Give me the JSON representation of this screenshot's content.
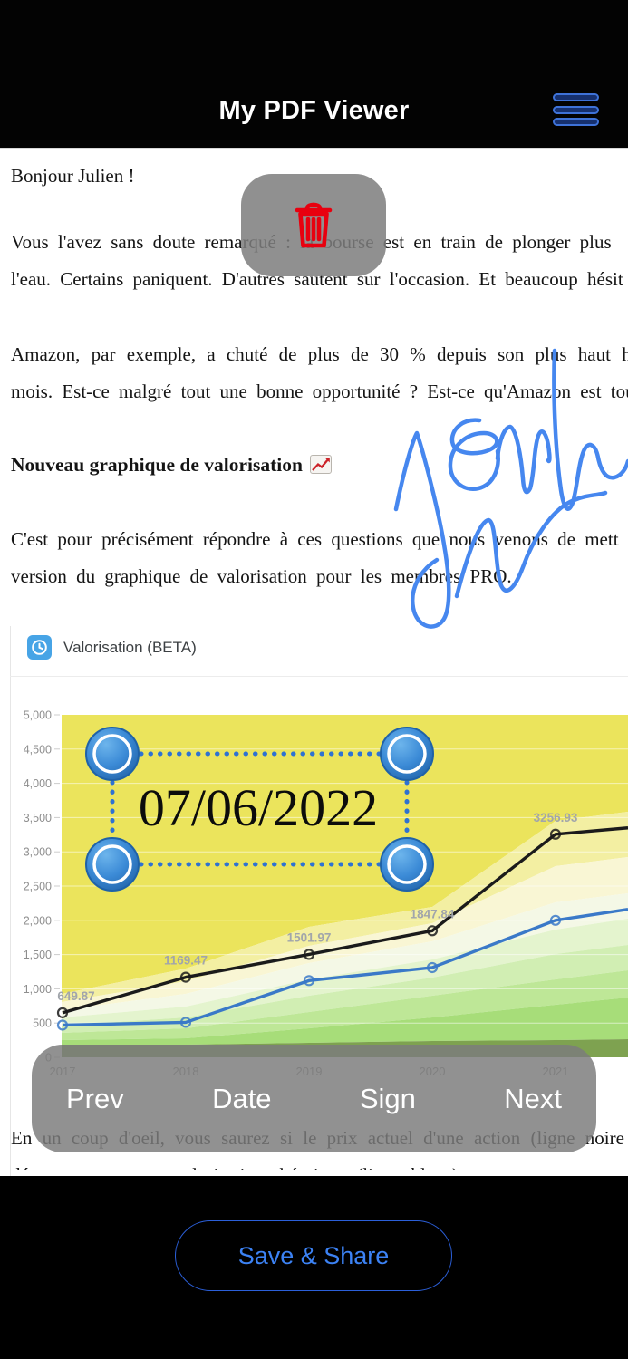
{
  "header": {
    "title": "My PDF Viewer",
    "menu_icon": "hamburger"
  },
  "document": {
    "greeting": "Bonjour Julien !",
    "para1": [
      "Vous l'avez sans doute remarqué : la bourse est en train de plonger plus",
      "l'eau. Certains paniquent. D'autres sautent sur l'occasion. Et beaucoup hésit"
    ],
    "para2": [
      "Amazon, par exemple, a chuté de plus de 30 % depuis son plus haut his",
      "mois. Est-ce malgré tout une bonne opportunité ? Est-ce qu'Amazon est tou"
    ],
    "heading": "Nouveau graphique de valorisation",
    "heading_emoji": "chart-increasing",
    "para3": [
      "C'est pour précisément répondre à ces questions que nous venons de mett",
      "version du graphique de valorisation pour les membres PRO."
    ],
    "para4": "En un coup d'oeil, vous saurez si le prix actuel d'une action (ligne noire",
    "para5_clipped": "dépasse ou non sa valorisation théorique (ligne bleue), et vous saurez"
  },
  "annotations": {
    "date_stamp": "07/06/2022",
    "signature_color": "#4687ef",
    "trash_color": "#e8000f",
    "handle_color": "#2f7fd0",
    "dotted_color": "#2e72d2"
  },
  "chart_card": {
    "title": "Valorisation (BETA)",
    "icon": "clock"
  },
  "chart_data": {
    "type": "line",
    "title": "Valorisation (BETA)",
    "x_categories": [
      "2017",
      "2018",
      "2019",
      "2020",
      "2021"
    ],
    "series": [
      {
        "name": "price-black",
        "color": "#1b1b1b",
        "values": [
          649.87,
          1169.47,
          1501.97,
          1847.84,
          3256.93
        ],
        "edge_value": 3350,
        "point_labels": [
          "649.87",
          "1169.47",
          "1501.97",
          "1847.84",
          "3256.93"
        ]
      },
      {
        "name": "valuation-blue",
        "color": "#3a79c8",
        "values": [
          470,
          510,
          1120,
          1310,
          2000
        ],
        "edge_value": 2160,
        "point_labels": []
      }
    ],
    "ylim": [
      0,
      5000
    ],
    "ytick_labels": [
      "0",
      "500",
      "1,000",
      "1,500",
      "2,000",
      "2,500",
      "3,000",
      "3,500",
      "4,000",
      "4,500",
      "5,000"
    ],
    "grid": true,
    "legend_position": "none",
    "zone_colors": [
      "#ebe45c",
      "#f3efa2",
      "#f9f6d4",
      "#f4f8e6",
      "#e4f4ce",
      "#d1eeb3",
      "#bee797",
      "#a7dd79",
      "#7ea250"
    ],
    "label_color": "#a1a5ab",
    "axis_label_color": "#8e8e8e"
  },
  "toolbar": {
    "buttons": [
      "Prev",
      "Date",
      "Sign",
      "Next"
    ]
  },
  "footer": {
    "save_label": "Save & Share"
  }
}
